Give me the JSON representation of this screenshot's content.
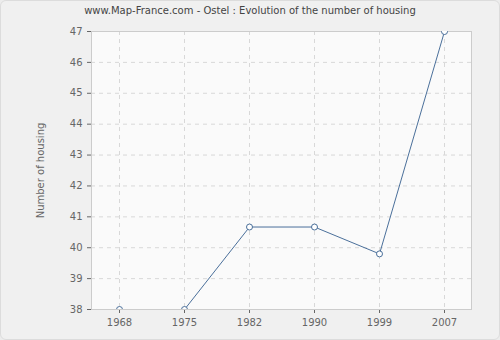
{
  "chart_data": {
    "type": "line",
    "title": "www.Map-France.com - Ostel : Evolution of the number of housing",
    "y_label": "Number of housing",
    "categories": [
      "1968",
      "1975",
      "1982",
      "1990",
      "1999",
      "2007"
    ],
    "values": [
      38,
      38,
      40.67,
      40.67,
      39.8,
      47
    ],
    "color": "#4a6f9a",
    "marker": "circle",
    "ylim": [
      38,
      47
    ],
    "yticks": [
      38,
      39,
      40,
      41,
      42,
      43,
      44,
      45,
      46,
      47
    ],
    "grid": true
  }
}
